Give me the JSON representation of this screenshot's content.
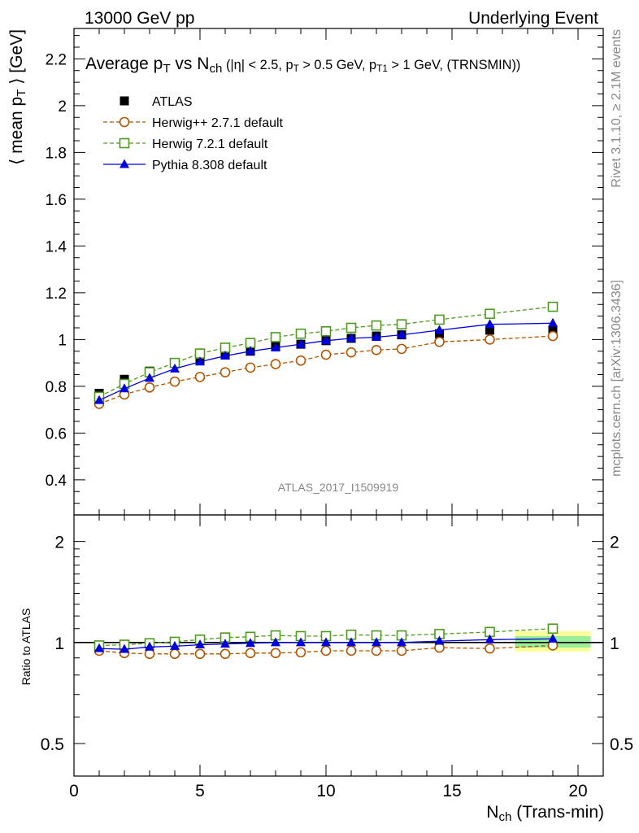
{
  "header": {
    "left": "13000 GeV pp",
    "right": "Underlying Event"
  },
  "side_labels": {
    "rivet": "Rivet 3.1.10, ≥ 2.1M events",
    "mcplots": "mcplots.cern.ch [arXiv:1306.3436]"
  },
  "watermark": "ATLAS_2017_I1509919",
  "chart_data": [
    {
      "type": "scatter",
      "panel": "main",
      "title": {
        "parts": [
          {
            "t": "Average p"
          },
          {
            "t": "T",
            "sub": true
          },
          {
            "t": " vs N"
          },
          {
            "t": "ch",
            "sub": true
          },
          {
            "t": " (|η| < 2.5, p",
            "small": true
          },
          {
            "t": "T",
            "sub": true,
            "small": true
          },
          {
            "t": " > 0.5 GeV, p",
            "small": true
          },
          {
            "t": "T1",
            "sub": true,
            "small": true
          },
          {
            "t": " > 1 GeV, (TRNSMIN))",
            "small": true
          }
        ]
      },
      "ylabel": {
        "parts": [
          {
            "t": "⟨ mean p"
          },
          {
            "t": "T",
            "sub": true
          },
          {
            "t": " ⟩ [GeV]"
          }
        ]
      },
      "xlim": [
        0,
        21
      ],
      "ylim": [
        0.25,
        2.33
      ],
      "yticks": [
        0.4,
        0.6,
        0.8,
        1,
        1.2,
        1.4,
        1.6,
        1.8,
        2,
        2.2
      ],
      "ytick_labels": [
        "0.4",
        "0.6",
        "0.8",
        "1",
        "1.2",
        "1.4",
        "1.6",
        "1.8",
        "2",
        "2.2"
      ],
      "legend_position": "top-left",
      "series": [
        {
          "name": "ATLAS",
          "marker": "square-filled",
          "color": "#000000",
          "line": "none",
          "x": [
            1,
            2,
            3,
            4,
            5,
            6,
            7,
            8,
            9,
            10,
            11,
            12,
            13,
            14.5,
            16.5,
            19
          ],
          "y": [
            0.77,
            0.83,
            0.865,
            0.9,
            0.915,
            0.935,
            0.95,
            0.97,
            0.98,
            0.995,
            1.005,
            1.015,
            1.02,
            1.025,
            1.04,
            1.04
          ]
        },
        {
          "name": "Herwig++ 2.7.1 default",
          "marker": "circle-open",
          "color": "#b25400",
          "line": "dashed",
          "x": [
            1,
            2,
            3,
            4,
            5,
            6,
            7,
            8,
            9,
            10,
            11,
            12,
            13,
            14.5,
            16.5,
            19
          ],
          "y": [
            0.725,
            0.765,
            0.795,
            0.82,
            0.84,
            0.86,
            0.88,
            0.895,
            0.91,
            0.935,
            0.945,
            0.955,
            0.96,
            0.99,
            1.0,
            1.015
          ]
        },
        {
          "name": "Herwig 7.2.1 default",
          "marker": "square-open",
          "color": "#4d9a1d",
          "line": "dashed",
          "x": [
            1,
            2,
            3,
            4,
            5,
            6,
            7,
            8,
            9,
            10,
            11,
            12,
            13,
            14.5,
            16.5,
            19
          ],
          "y": [
            0.755,
            0.81,
            0.86,
            0.9,
            0.94,
            0.965,
            0.985,
            1.01,
            1.025,
            1.035,
            1.05,
            1.06,
            1.065,
            1.085,
            1.11,
            1.14
          ]
        },
        {
          "name": "Pythia 8.308 default",
          "marker": "triangle-filled",
          "color": "#0000dd",
          "line": "solid",
          "x": [
            1,
            2,
            3,
            4,
            5,
            6,
            7,
            8,
            9,
            10,
            11,
            12,
            13,
            14.5,
            16.5,
            19
          ],
          "y": [
            0.74,
            0.79,
            0.835,
            0.875,
            0.905,
            0.93,
            0.95,
            0.965,
            0.98,
            0.995,
            1.005,
            1.01,
            1.02,
            1.04,
            1.065,
            1.07
          ]
        }
      ]
    },
    {
      "type": "scatter",
      "panel": "ratio",
      "ylabel": "Ratio to ATLAS",
      "xlabel": {
        "parts": [
          {
            "t": "N"
          },
          {
            "t": "ch",
            "sub": true
          },
          {
            "t": " (Trans-min)"
          }
        ]
      },
      "xlim": [
        0,
        21
      ],
      "ylim": [
        0.4,
        2.4
      ],
      "yscale": "log",
      "yticks": [
        0.5,
        1,
        2
      ],
      "ytick_labels": [
        "0.5",
        "1",
        "2"
      ],
      "xticks": [
        0,
        5,
        10,
        15,
        20
      ],
      "xtick_labels": [
        "0",
        "5",
        "10",
        "15",
        "20"
      ],
      "reference": 1,
      "uncertainty_band": [
        {
          "x_from": 17.5,
          "x_to": 20.5,
          "total": [
            0.94,
            1.08
          ],
          "stat": [
            0.965,
            1.045
          ]
        }
      ],
      "band_colors": {
        "total": "#ffff99",
        "stat": "#99ee99"
      },
      "series": [
        {
          "name": "Herwig++ 2.7.1 default",
          "marker": "circle-open",
          "color": "#b25400",
          "line": "dashed",
          "x": [
            1,
            2,
            3,
            4,
            5,
            6,
            7,
            8,
            9,
            10,
            11,
            12,
            13,
            14.5,
            16.5,
            19
          ],
          "y": [
            0.945,
            0.93,
            0.925,
            0.925,
            0.925,
            0.925,
            0.93,
            0.93,
            0.935,
            0.945,
            0.945,
            0.945,
            0.945,
            0.965,
            0.96,
            0.98
          ]
        },
        {
          "name": "Herwig 7.2.1 default",
          "marker": "square-open",
          "color": "#4d9a1d",
          "line": "dashed",
          "x": [
            1,
            2,
            3,
            4,
            5,
            6,
            7,
            8,
            9,
            10,
            11,
            12,
            13,
            14.5,
            16.5,
            19
          ],
          "y": [
            0.98,
            0.985,
            0.995,
            1.005,
            1.02,
            1.035,
            1.04,
            1.05,
            1.045,
            1.045,
            1.055,
            1.05,
            1.05,
            1.06,
            1.075,
            1.1
          ]
        },
        {
          "name": "Pythia 8.308 default",
          "marker": "triangle-filled",
          "color": "#0000dd",
          "line": "solid",
          "x": [
            1,
            2,
            3,
            4,
            5,
            6,
            7,
            8,
            9,
            10,
            11,
            12,
            13,
            14.5,
            16.5,
            19
          ],
          "y": [
            0.96,
            0.955,
            0.97,
            0.975,
            0.985,
            0.99,
            0.995,
            1.0,
            1.0,
            1.0,
            1.0,
            1.0,
            1.0,
            1.01,
            1.02,
            1.025
          ]
        }
      ]
    }
  ]
}
